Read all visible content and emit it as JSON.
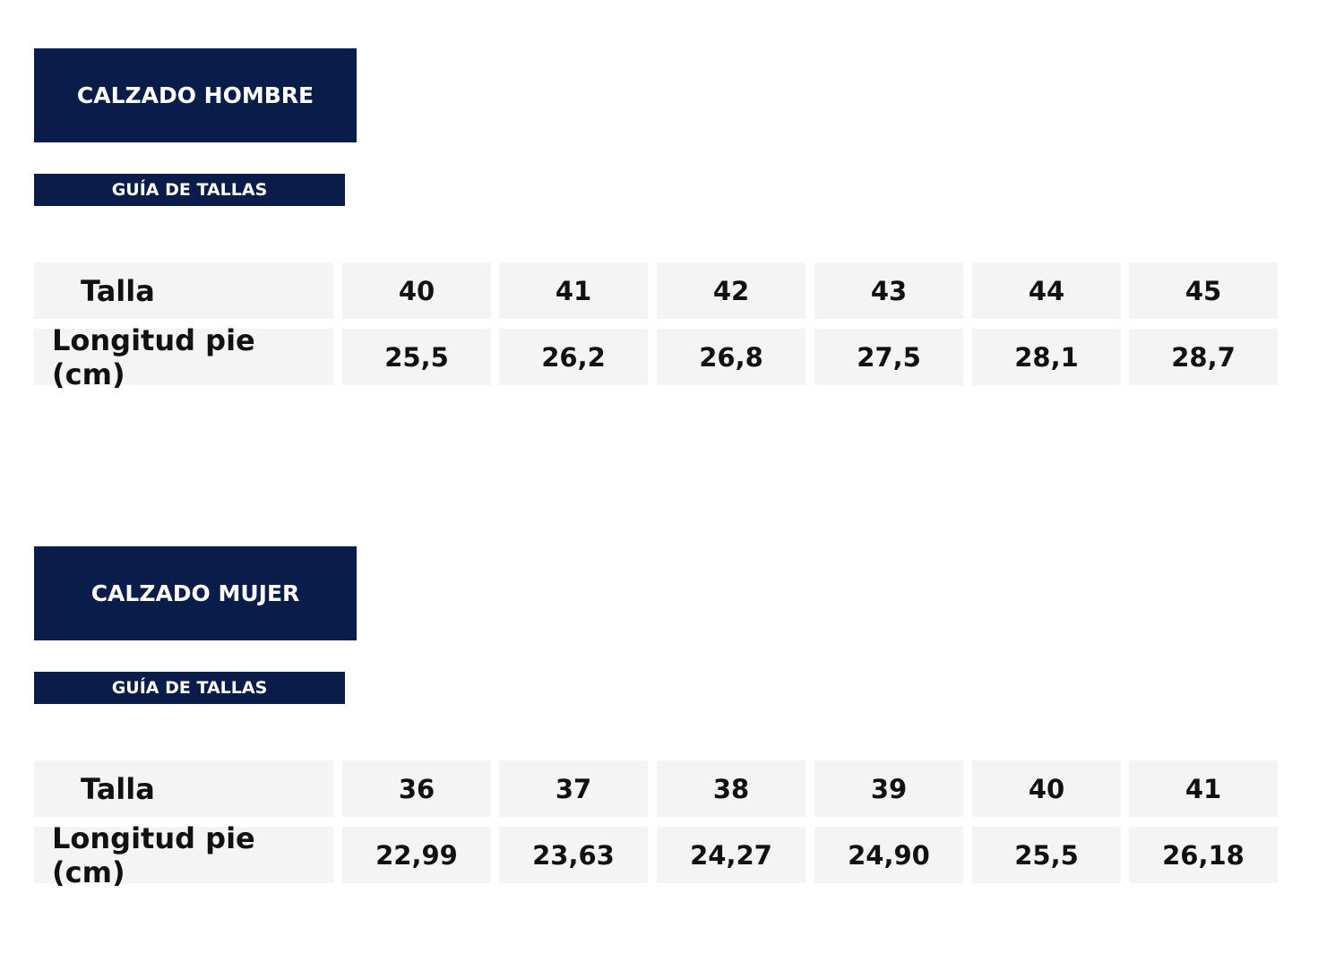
{
  "sections": [
    {
      "title": "CALZADO HOMBRE",
      "subtitle": "GUÍA DE TALLAS",
      "rows": [
        {
          "label": "Talla",
          "cells": [
            "40",
            "41",
            "42",
            "43",
            "44",
            "45"
          ]
        },
        {
          "label": "Longitud pie (cm)",
          "cells": [
            "25,5",
            "26,2",
            "26,8",
            "27,5",
            "28,1",
            "28,7"
          ]
        }
      ]
    },
    {
      "title": "CALZADO MUJER",
      "subtitle": "GUÍA DE TALLAS",
      "rows": [
        {
          "label": "Talla",
          "cells": [
            "36",
            "37",
            "38",
            "39",
            "40",
            "41"
          ]
        },
        {
          "label": "Longitud pie (cm)",
          "cells": [
            "22,99",
            "23,63",
            "24,27",
            "24,90",
            "25,5",
            "26,18"
          ]
        }
      ]
    }
  ]
}
